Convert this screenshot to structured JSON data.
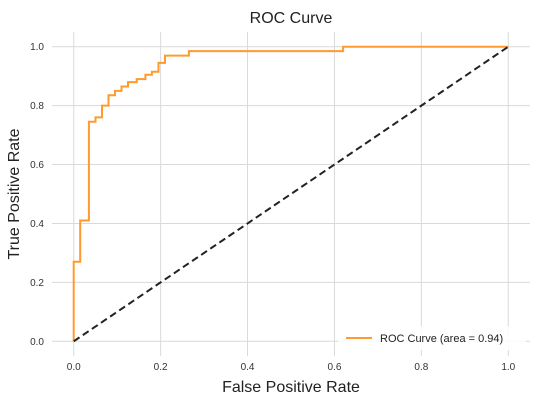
{
  "chart_data": {
    "type": "line",
    "title": "ROC Curve",
    "xlabel": "False Positive Rate",
    "ylabel": "True Positive Rate",
    "xlim": [
      -0.05,
      1.05
    ],
    "ylim": [
      -0.05,
      1.05
    ],
    "xticks": [
      "0.0",
      "0.2",
      "0.4",
      "0.6",
      "0.8",
      "1.0"
    ],
    "yticks": [
      "0.0",
      "0.2",
      "0.4",
      "0.6",
      "0.8",
      "1.0"
    ],
    "grid": true,
    "legend_position": "bottom-right",
    "series": [
      {
        "name": "ROC Curve (area = 0.94)",
        "color": "#ff9a2e",
        "style": "step",
        "x": [
          0.0,
          0.0,
          0.015,
          0.015,
          0.035,
          0.035,
          0.05,
          0.05,
          0.065,
          0.065,
          0.08,
          0.08,
          0.095,
          0.095,
          0.11,
          0.11,
          0.125,
          0.125,
          0.145,
          0.145,
          0.165,
          0.165,
          0.18,
          0.18,
          0.195,
          0.195,
          0.21,
          0.21,
          0.265,
          0.265,
          0.62,
          0.62,
          1.0
        ],
        "y": [
          0.0,
          0.27,
          0.27,
          0.41,
          0.41,
          0.745,
          0.745,
          0.76,
          0.76,
          0.8,
          0.8,
          0.835,
          0.835,
          0.85,
          0.85,
          0.865,
          0.865,
          0.88,
          0.88,
          0.89,
          0.89,
          0.905,
          0.905,
          0.915,
          0.915,
          0.945,
          0.945,
          0.97,
          0.97,
          0.985,
          0.985,
          1.0,
          1.0
        ]
      },
      {
        "name": "",
        "color": "#222222",
        "style": "dashed",
        "x": [
          0.0,
          1.0
        ],
        "y": [
          0.0,
          1.0
        ]
      }
    ]
  }
}
